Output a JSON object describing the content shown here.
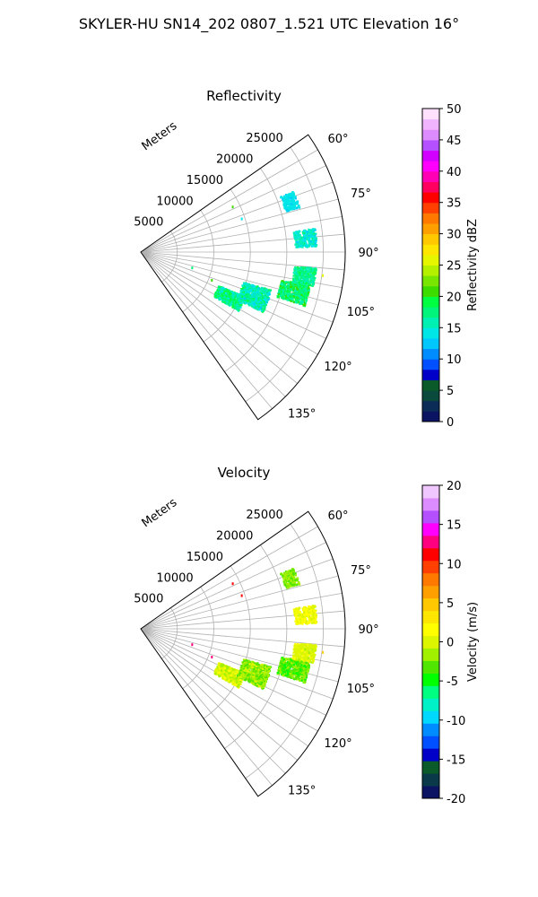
{
  "figure": {
    "title": "SKYLER-HU  SN14_202  0807_1.521 UTC Elevation 16°"
  },
  "chart_data": [
    {
      "type": "heatmap",
      "projection": "polar-sector",
      "title": "Reflectivity",
      "radial_label": "Meters",
      "radial_ticks": [
        5000,
        10000,
        15000,
        20000,
        25000
      ],
      "radial_tick_labels": [
        "5000",
        "10000",
        "15000",
        "20000",
        "25000"
      ],
      "rlim": [
        0,
        28000
      ],
      "angle_ticks": [
        60,
        75,
        90,
        105,
        120,
        135
      ],
      "angle_tick_labels": [
        "60°",
        "75°",
        "90°",
        "105°",
        "120°",
        "135°"
      ],
      "angle_range": [
        55,
        145
      ],
      "grid": true,
      "colorbar": {
        "label": "Reflectivity dBZ",
        "range": [
          0,
          50
        ],
        "ticks": [
          0,
          5,
          10,
          15,
          20,
          25,
          30,
          35,
          40,
          45,
          50
        ],
        "tick_labels": [
          "0",
          "5",
          "10",
          "15",
          "20",
          "25",
          "30",
          "35",
          "40",
          "45",
          "50"
        ],
        "colors": [
          "#0b1363",
          "#0b2c57",
          "#0a4a3c",
          "#0a5a2a",
          "#0000c8",
          "#0050ff",
          "#008cff",
          "#00c8ff",
          "#00e6e6",
          "#00f0b4",
          "#00f57a",
          "#00ff40",
          "#3cdc00",
          "#78e600",
          "#b4f000",
          "#e6f500",
          "#ffe600",
          "#ffc800",
          "#ffa000",
          "#ff7800",
          "#ff4000",
          "#ff0000",
          "#ff0060",
          "#ff00b4",
          "#ff00ff",
          "#d200ff",
          "#b450ff",
          "#dc8cff",
          "#f0b4ff",
          "#ffe0ff"
        ]
      },
      "clusters": [
        {
          "angle": [
            113,
            121
          ],
          "range": [
            11500,
            15500
          ],
          "value": 17,
          "spread": 3
        },
        {
          "angle": [
            106,
            116
          ],
          "range": [
            14500,
            18500
          ],
          "value": 16,
          "spread": 3
        },
        {
          "angle": [
            101,
            108
          ],
          "range": [
            19500,
            23500
          ],
          "value": 18,
          "spread": 3
        },
        {
          "angle": [
            95,
            101
          ],
          "range": [
            21000,
            24000
          ],
          "value": 17,
          "spread": 2
        },
        {
          "angle": [
            82,
            88
          ],
          "range": [
            21000,
            24000
          ],
          "value": 15,
          "spread": 2
        },
        {
          "angle": [
            68,
            74
          ],
          "range": [
            20500,
            22500
          ],
          "value": 14,
          "spread": 1
        }
      ],
      "sparse_points": [
        {
          "angle": 63,
          "range": 14000,
          "value": 20
        },
        {
          "angle": 71,
          "range": 14500,
          "value": 14
        },
        {
          "angle": 97,
          "range": 25000,
          "value": 26
        },
        {
          "angle": 106,
          "range": 7200,
          "value": 17
        },
        {
          "angle": 111,
          "range": 10300,
          "value": 20
        }
      ]
    },
    {
      "type": "heatmap",
      "projection": "polar-sector",
      "title": "Velocity",
      "radial_label": "Meters",
      "radial_ticks": [
        5000,
        10000,
        15000,
        20000,
        25000
      ],
      "radial_tick_labels": [
        "5000",
        "10000",
        "15000",
        "20000",
        "25000"
      ],
      "rlim": [
        0,
        28000
      ],
      "angle_ticks": [
        60,
        75,
        90,
        105,
        120,
        135
      ],
      "angle_tick_labels": [
        "60°",
        "75°",
        "90°",
        "105°",
        "120°",
        "135°"
      ],
      "angle_range": [
        55,
        145
      ],
      "grid": true,
      "colorbar": {
        "label": "Velocity (m/s)",
        "range": [
          -20,
          20
        ],
        "ticks": [
          -20,
          -15,
          -10,
          -5,
          0,
          5,
          10,
          15,
          20
        ],
        "tick_labels": [
          "-20",
          "-15",
          "-10",
          "-5",
          "0",
          "5",
          "10",
          "15",
          "20"
        ],
        "colors": [
          "#0b1363",
          "#0a3a4a",
          "#0a5a2a",
          "#0000c8",
          "#0050ff",
          "#008cff",
          "#00d8ff",
          "#00f0c8",
          "#00ff80",
          "#00ff00",
          "#50e600",
          "#a0f000",
          "#dcf500",
          "#ffff00",
          "#ffe600",
          "#ffc800",
          "#ffa000",
          "#ff7800",
          "#ff4000",
          "#ff0000",
          "#ff0080",
          "#ff00ff",
          "#b450ff",
          "#dc8cff",
          "#f0c8ff"
        ]
      },
      "clusters": [
        {
          "angle": [
            113,
            121
          ],
          "range": [
            11500,
            15500
          ],
          "value": 0,
          "spread": 2
        },
        {
          "angle": [
            106,
            116
          ],
          "range": [
            14500,
            18500
          ],
          "value": -2,
          "spread": 2
        },
        {
          "angle": [
            101,
            108
          ],
          "range": [
            19500,
            23500
          ],
          "value": -3,
          "spread": 2
        },
        {
          "angle": [
            95,
            101
          ],
          "range": [
            21000,
            24000
          ],
          "value": 0,
          "spread": 1
        },
        {
          "angle": [
            82,
            88
          ],
          "range": [
            21000,
            24000
          ],
          "value": 1,
          "spread": 1
        },
        {
          "angle": [
            68,
            74
          ],
          "range": [
            20500,
            22500
          ],
          "value": -2,
          "spread": 1
        }
      ],
      "sparse_points": [
        {
          "angle": 63,
          "range": 14000,
          "value": 11
        },
        {
          "angle": 71,
          "range": 14500,
          "value": 11
        },
        {
          "angle": 97,
          "range": 25000,
          "value": 5
        },
        {
          "angle": 106,
          "range": 7200,
          "value": 12
        },
        {
          "angle": 111,
          "range": 10300,
          "value": 12
        }
      ]
    }
  ]
}
